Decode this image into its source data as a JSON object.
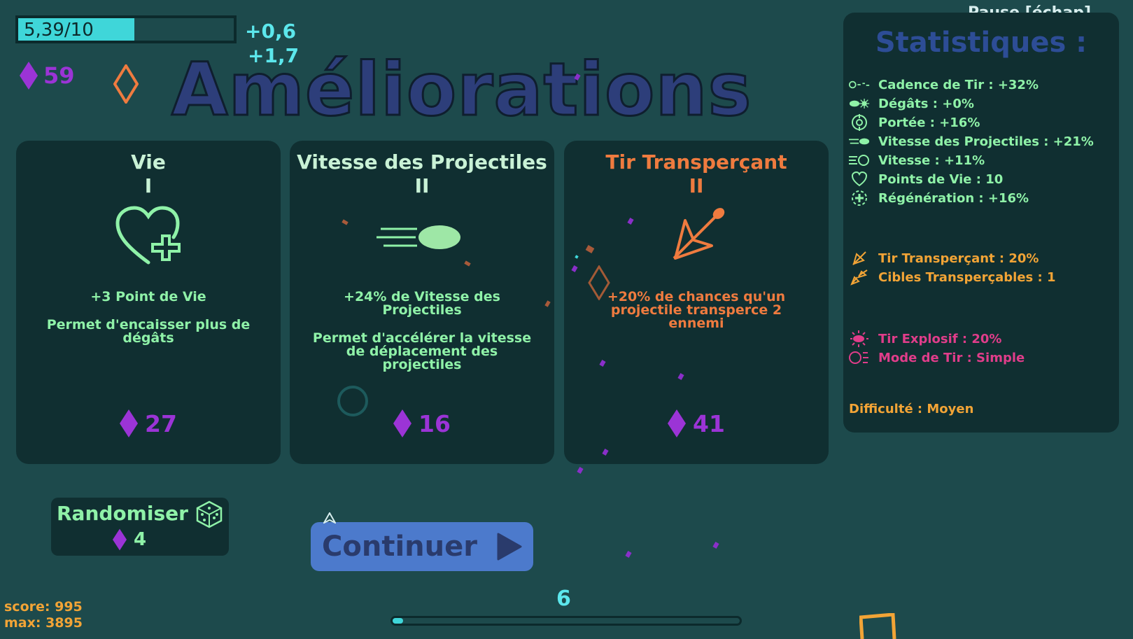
{
  "hud": {
    "xp_text": "5,39/10",
    "xp_progress": 0.539,
    "gain_1": "+0,6",
    "gain_2": "+1,7",
    "gems": "59",
    "pause_label": "Pause [échap]"
  },
  "title": "Améliorations",
  "cards": [
    {
      "title": "Vie",
      "level": "I",
      "desc": "+3 Point de Vie",
      "desc2": "Permet d'encaisser plus de dégâts",
      "cost": "27",
      "icon": "heart-plus-icon"
    },
    {
      "title": "Vitesse des Projectiles",
      "level": "II",
      "desc": "+24% de Vitesse des Projectiles",
      "desc2": "Permet d'accélérer la vitesse de déplacement des projectiles",
      "cost": "16",
      "icon": "fast-projectile-icon"
    },
    {
      "title": "Tir Transperçant",
      "level": "II",
      "desc": "+20% de chances qu'un projectile transperce 2 ennemi",
      "desc2": "",
      "cost": "41",
      "icon": "piercing-arrow-icon"
    }
  ],
  "stats": {
    "title": "Statistiques :",
    "items": [
      {
        "label": "Cadence de Tir : +32%",
        "icon": "fire-rate-icon"
      },
      {
        "label": "Dégâts : +0%",
        "icon": "damage-icon"
      },
      {
        "label": "Portée : +16%",
        "icon": "range-icon"
      },
      {
        "label": "Vitesse des Projectiles : +21%",
        "icon": "projectile-speed-icon"
      },
      {
        "label": "Vitesse : +11%",
        "icon": "speed-icon"
      },
      {
        "label": "Points de Vie : 10",
        "icon": "health-icon"
      },
      {
        "label": "Régénération : +16%",
        "icon": "regen-icon"
      },
      {
        "label": "Tir Transperçant : 20%",
        "icon": "piercing-icon"
      },
      {
        "label": "Cibles Transperçables : 1",
        "icon": "pierce-targets-icon"
      },
      {
        "label": "Tir Explosif : 20%",
        "icon": "explosive-icon"
      },
      {
        "label": "Mode de Tir : Simple",
        "icon": "fire-mode-icon"
      }
    ],
    "difficulty": "Difficulté : Moyen"
  },
  "randomiser": {
    "label": "Randomiser",
    "cost": "4",
    "icon": "dice-icon"
  },
  "continue": {
    "label": "Continuer",
    "icon": "play-icon"
  },
  "footer": {
    "score": "score: 995",
    "max": "max: 3895",
    "wave": "6",
    "wave_progress": 0.03
  },
  "colors": {
    "background": "#1d4a4c",
    "panel": "#102f31",
    "gem": "#9b34d6",
    "green": "#8ff2a8",
    "orange": "#ef7b3f",
    "pink": "#e03d8a",
    "gold": "#f2a436",
    "cyan": "#3fd6d9",
    "title_blue": "#2d3e7a"
  }
}
